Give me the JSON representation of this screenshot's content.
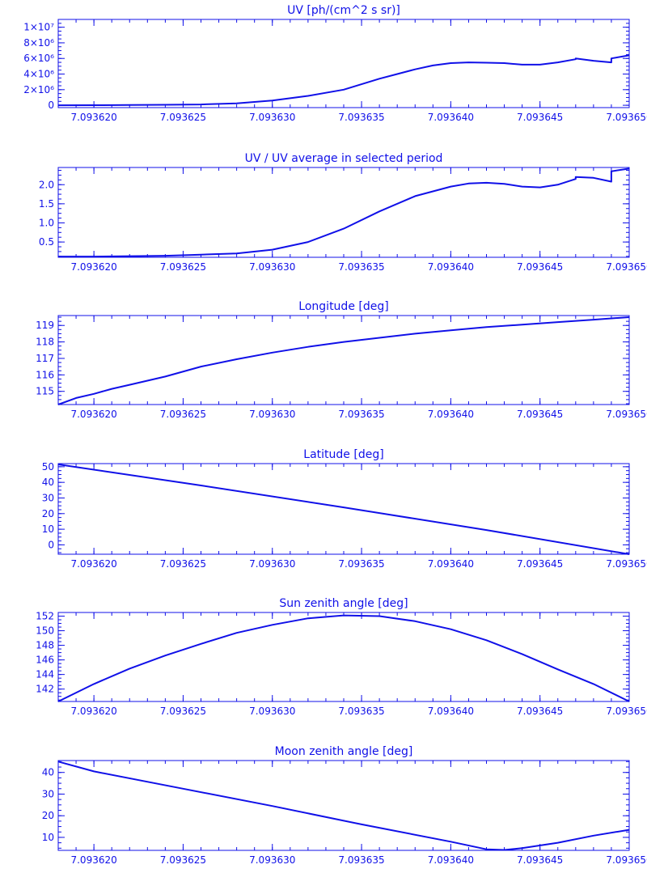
{
  "colors": {
    "ink": "#1010e8",
    "background": "#ffffff"
  },
  "chart_data": [
    {
      "type": "line",
      "title": "UV [ph/(cm^2 s sr)]",
      "xlabel": "",
      "ylabel": "",
      "xlim": [
        7.093618,
        7.09365
      ],
      "ylim": [
        -300000,
        11000000
      ],
      "x_ticks": [
        7.09362,
        7.093625,
        7.09363,
        7.093635,
        7.09364,
        7.093645,
        7.09365
      ],
      "x_tick_labels": [
        "7.093620",
        "7.093625",
        "7.093630",
        "7.093635",
        "7.093640",
        "7.093645",
        "7.093650"
      ],
      "y_ticks": [
        0,
        2000000,
        4000000,
        6000000,
        8000000,
        10000000
      ],
      "y_tick_labels": [
        "0",
        "2×10⁶",
        "4×10⁶",
        "6×10⁶",
        "8×10⁶",
        "1×10⁷"
      ],
      "grid": false,
      "series": [
        {
          "x": [
            7.093618,
            7.09362,
            7.093622,
            7.093624,
            7.093626,
            7.093628,
            7.09363,
            7.093632,
            7.093634,
            7.093636,
            7.093637,
            7.093638,
            7.093639,
            7.09364,
            7.093641,
            7.093642,
            7.093643,
            7.093644,
            7.093645,
            7.093646,
            7.093647,
            7.093647,
            7.093648,
            7.093649,
            7.093649,
            7.09365
          ],
          "y": [
            0,
            10000,
            30000,
            60000,
            100000,
            250000,
            600000,
            1200000,
            2000000,
            3400000,
            4000000,
            4600000,
            5100000,
            5400000,
            5500000,
            5450000,
            5400000,
            5200000,
            5200000,
            5500000,
            5900000,
            6000000,
            5700000,
            5500000,
            6000000,
            6400000
          ]
        }
      ]
    },
    {
      "type": "line",
      "title": "UV / UV average in selected period",
      "xlabel": "",
      "ylabel": "",
      "xlim": [
        7.093618,
        7.09365
      ],
      "ylim": [
        0.1,
        2.45
      ],
      "x_ticks": [
        7.09362,
        7.093625,
        7.09363,
        7.093635,
        7.09364,
        7.093645,
        7.09365
      ],
      "x_tick_labels": [
        "7.093620",
        "7.093625",
        "7.093630",
        "7.093635",
        "7.093640",
        "7.093645",
        "7.093650"
      ],
      "y_ticks": [
        0.5,
        1.0,
        1.5,
        2.0
      ],
      "y_tick_labels": [
        "0.5",
        "1.0",
        "1.5",
        "2.0"
      ],
      "grid": false,
      "series": [
        {
          "x": [
            7.093618,
            7.09362,
            7.093624,
            7.093626,
            7.093628,
            7.09363,
            7.093632,
            7.093634,
            7.093636,
            7.093638,
            7.09364,
            7.093641,
            7.093642,
            7.093643,
            7.093644,
            7.093645,
            7.093646,
            7.093647,
            7.093647,
            7.093648,
            7.093649,
            7.093649,
            7.093649,
            7.09365
          ],
          "y": [
            0.12,
            0.12,
            0.14,
            0.17,
            0.2,
            0.3,
            0.5,
            0.85,
            1.3,
            1.7,
            1.95,
            2.03,
            2.05,
            2.02,
            1.95,
            1.93,
            2.0,
            2.15,
            2.2,
            2.18,
            2.08,
            2.3,
            2.35,
            2.42
          ]
        }
      ]
    },
    {
      "type": "line",
      "title": "Longitude [deg]",
      "xlabel": "",
      "ylabel": "",
      "xlim": [
        7.093618,
        7.09365
      ],
      "ylim": [
        114.2,
        119.6
      ],
      "x_ticks": [
        7.09362,
        7.093625,
        7.09363,
        7.093635,
        7.09364,
        7.093645,
        7.09365
      ],
      "x_tick_labels": [
        "7.093620",
        "7.093625",
        "7.093630",
        "7.093635",
        "7.093640",
        "7.093645",
        "7.093650"
      ],
      "y_ticks": [
        115,
        116,
        117,
        118,
        119
      ],
      "y_tick_labels": [
        "115",
        "116",
        "117",
        "118",
        "119"
      ],
      "grid": false,
      "series": [
        {
          "x": [
            7.093618,
            7.093619,
            7.09362,
            7.093621,
            7.093622,
            7.093624,
            7.093626,
            7.093628,
            7.09363,
            7.093632,
            7.093634,
            7.093636,
            7.093638,
            7.09364,
            7.093642,
            7.093644,
            7.093646,
            7.093648,
            7.09365
          ],
          "y": [
            114.2,
            114.6,
            114.85,
            115.15,
            115.4,
            115.9,
            116.5,
            116.95,
            117.35,
            117.7,
            118.0,
            118.25,
            118.5,
            118.7,
            118.9,
            119.05,
            119.2,
            119.35,
            119.5
          ]
        }
      ]
    },
    {
      "type": "line",
      "title": "Latitude [deg]",
      "xlabel": "",
      "ylabel": "",
      "xlim": [
        7.093618,
        7.09365
      ],
      "ylim": [
        -6,
        52
      ],
      "x_ticks": [
        7.09362,
        7.093625,
        7.09363,
        7.093635,
        7.09364,
        7.093645,
        7.09365
      ],
      "x_tick_labels": [
        "7.093620",
        "7.093625",
        "7.093630",
        "7.093635",
        "7.093640",
        "7.093645",
        "7.093650"
      ],
      "y_ticks": [
        0,
        10,
        20,
        30,
        40,
        50
      ],
      "y_tick_labels": [
        "0",
        "10",
        "20",
        "30",
        "40",
        "50"
      ],
      "grid": false,
      "series": [
        {
          "x": [
            7.093618,
            7.093626,
            7.093634,
            7.093642,
            7.09365
          ],
          "y": [
            51.5,
            38,
            24,
            9.5,
            -6
          ]
        }
      ]
    },
    {
      "type": "line",
      "title": "Sun zenith angle [deg]",
      "xlabel": "",
      "ylabel": "",
      "xlim": [
        7.093618,
        7.09365
      ],
      "ylim": [
        140.3,
        152.5
      ],
      "x_ticks": [
        7.09362,
        7.093625,
        7.09363,
        7.093635,
        7.09364,
        7.093645,
        7.09365
      ],
      "x_tick_labels": [
        "7.093620",
        "7.093625",
        "7.093630",
        "7.093635",
        "7.093640",
        "7.093645",
        "7.093650"
      ],
      "y_ticks": [
        142,
        144,
        146,
        148,
        150,
        152
      ],
      "y_tick_labels": [
        "142",
        "144",
        "146",
        "148",
        "150",
        "152"
      ],
      "grid": false,
      "series": [
        {
          "x": [
            7.093618,
            7.09362,
            7.093622,
            7.093624,
            7.093626,
            7.093628,
            7.09363,
            7.093632,
            7.093634,
            7.093636,
            7.093638,
            7.09364,
            7.093642,
            7.093644,
            7.093646,
            7.093648,
            7.09365
          ],
          "y": [
            140.3,
            142.7,
            144.8,
            146.6,
            148.2,
            149.7,
            150.8,
            151.7,
            152.1,
            152.0,
            151.3,
            150.2,
            148.7,
            146.8,
            144.7,
            142.7,
            140.3
          ]
        }
      ]
    },
    {
      "type": "line",
      "title": "Moon zenith angle [deg]",
      "xlabel": "",
      "ylabel": "",
      "xlim": [
        7.093618,
        7.09365
      ],
      "ylim": [
        4,
        45.5
      ],
      "x_ticks": [
        7.09362,
        7.093625,
        7.09363,
        7.093635,
        7.09364,
        7.093645,
        7.09365
      ],
      "x_tick_labels": [
        "7.093620",
        "7.093625",
        "7.093630",
        "7.093635",
        "7.093640",
        "7.093645",
        "7.093650"
      ],
      "y_ticks": [
        10,
        20,
        30,
        40
      ],
      "y_tick_labels": [
        "10",
        "20",
        "30",
        "40"
      ],
      "grid": false,
      "series": [
        {
          "x": [
            7.093618,
            7.09362,
            7.093625,
            7.09363,
            7.093635,
            7.09364,
            7.093642,
            7.093643,
            7.093644,
            7.093646,
            7.093648,
            7.09365
          ],
          "y": [
            45.0,
            40.5,
            32.5,
            24.5,
            16.0,
            8.0,
            4.5,
            4.2,
            5.0,
            7.5,
            10.8,
            13.5
          ]
        }
      ]
    }
  ]
}
